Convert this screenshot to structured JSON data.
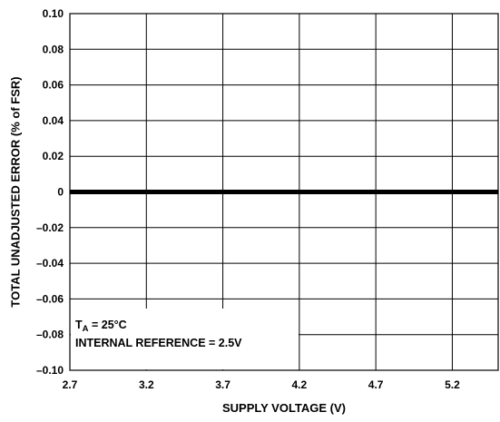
{
  "chart_data": {
    "type": "line",
    "xlabel": "SUPPLY VOLTAGE (V)",
    "ylabel": "TOTAL UNADJUSTED ERROR (% of FSR)",
    "xlim": [
      2.7,
      5.5
    ],
    "ylim": [
      -0.1,
      0.1
    ],
    "grid": true,
    "x_ticks": [
      2.7,
      3.2,
      3.7,
      4.2,
      4.7,
      5.2
    ],
    "x_tick_labels": [
      "2.7",
      "3.2",
      "3.7",
      "4.2",
      "4.7",
      "5.2"
    ],
    "y_ticks": [
      0.1,
      0.08,
      0.06,
      0.04,
      0.02,
      0,
      -0.02,
      -0.04,
      -0.06,
      -0.08,
      -0.1
    ],
    "y_tick_labels": [
      "0.10",
      "0.08",
      "0.06",
      "0.04",
      "0.02",
      "0",
      "–0.02",
      "–0.04",
      "–0.06",
      "–0.08",
      "–0.10"
    ],
    "series": [
      {
        "x": [
          2.7,
          5.5
        ],
        "values": [
          0,
          0
        ]
      }
    ],
    "annotation": {
      "ta_prefix": "T",
      "ta_subscript": "A",
      "ta_value": " = 25°C",
      "line2": "INTERNAL REFERENCE = 2.5V"
    }
  }
}
